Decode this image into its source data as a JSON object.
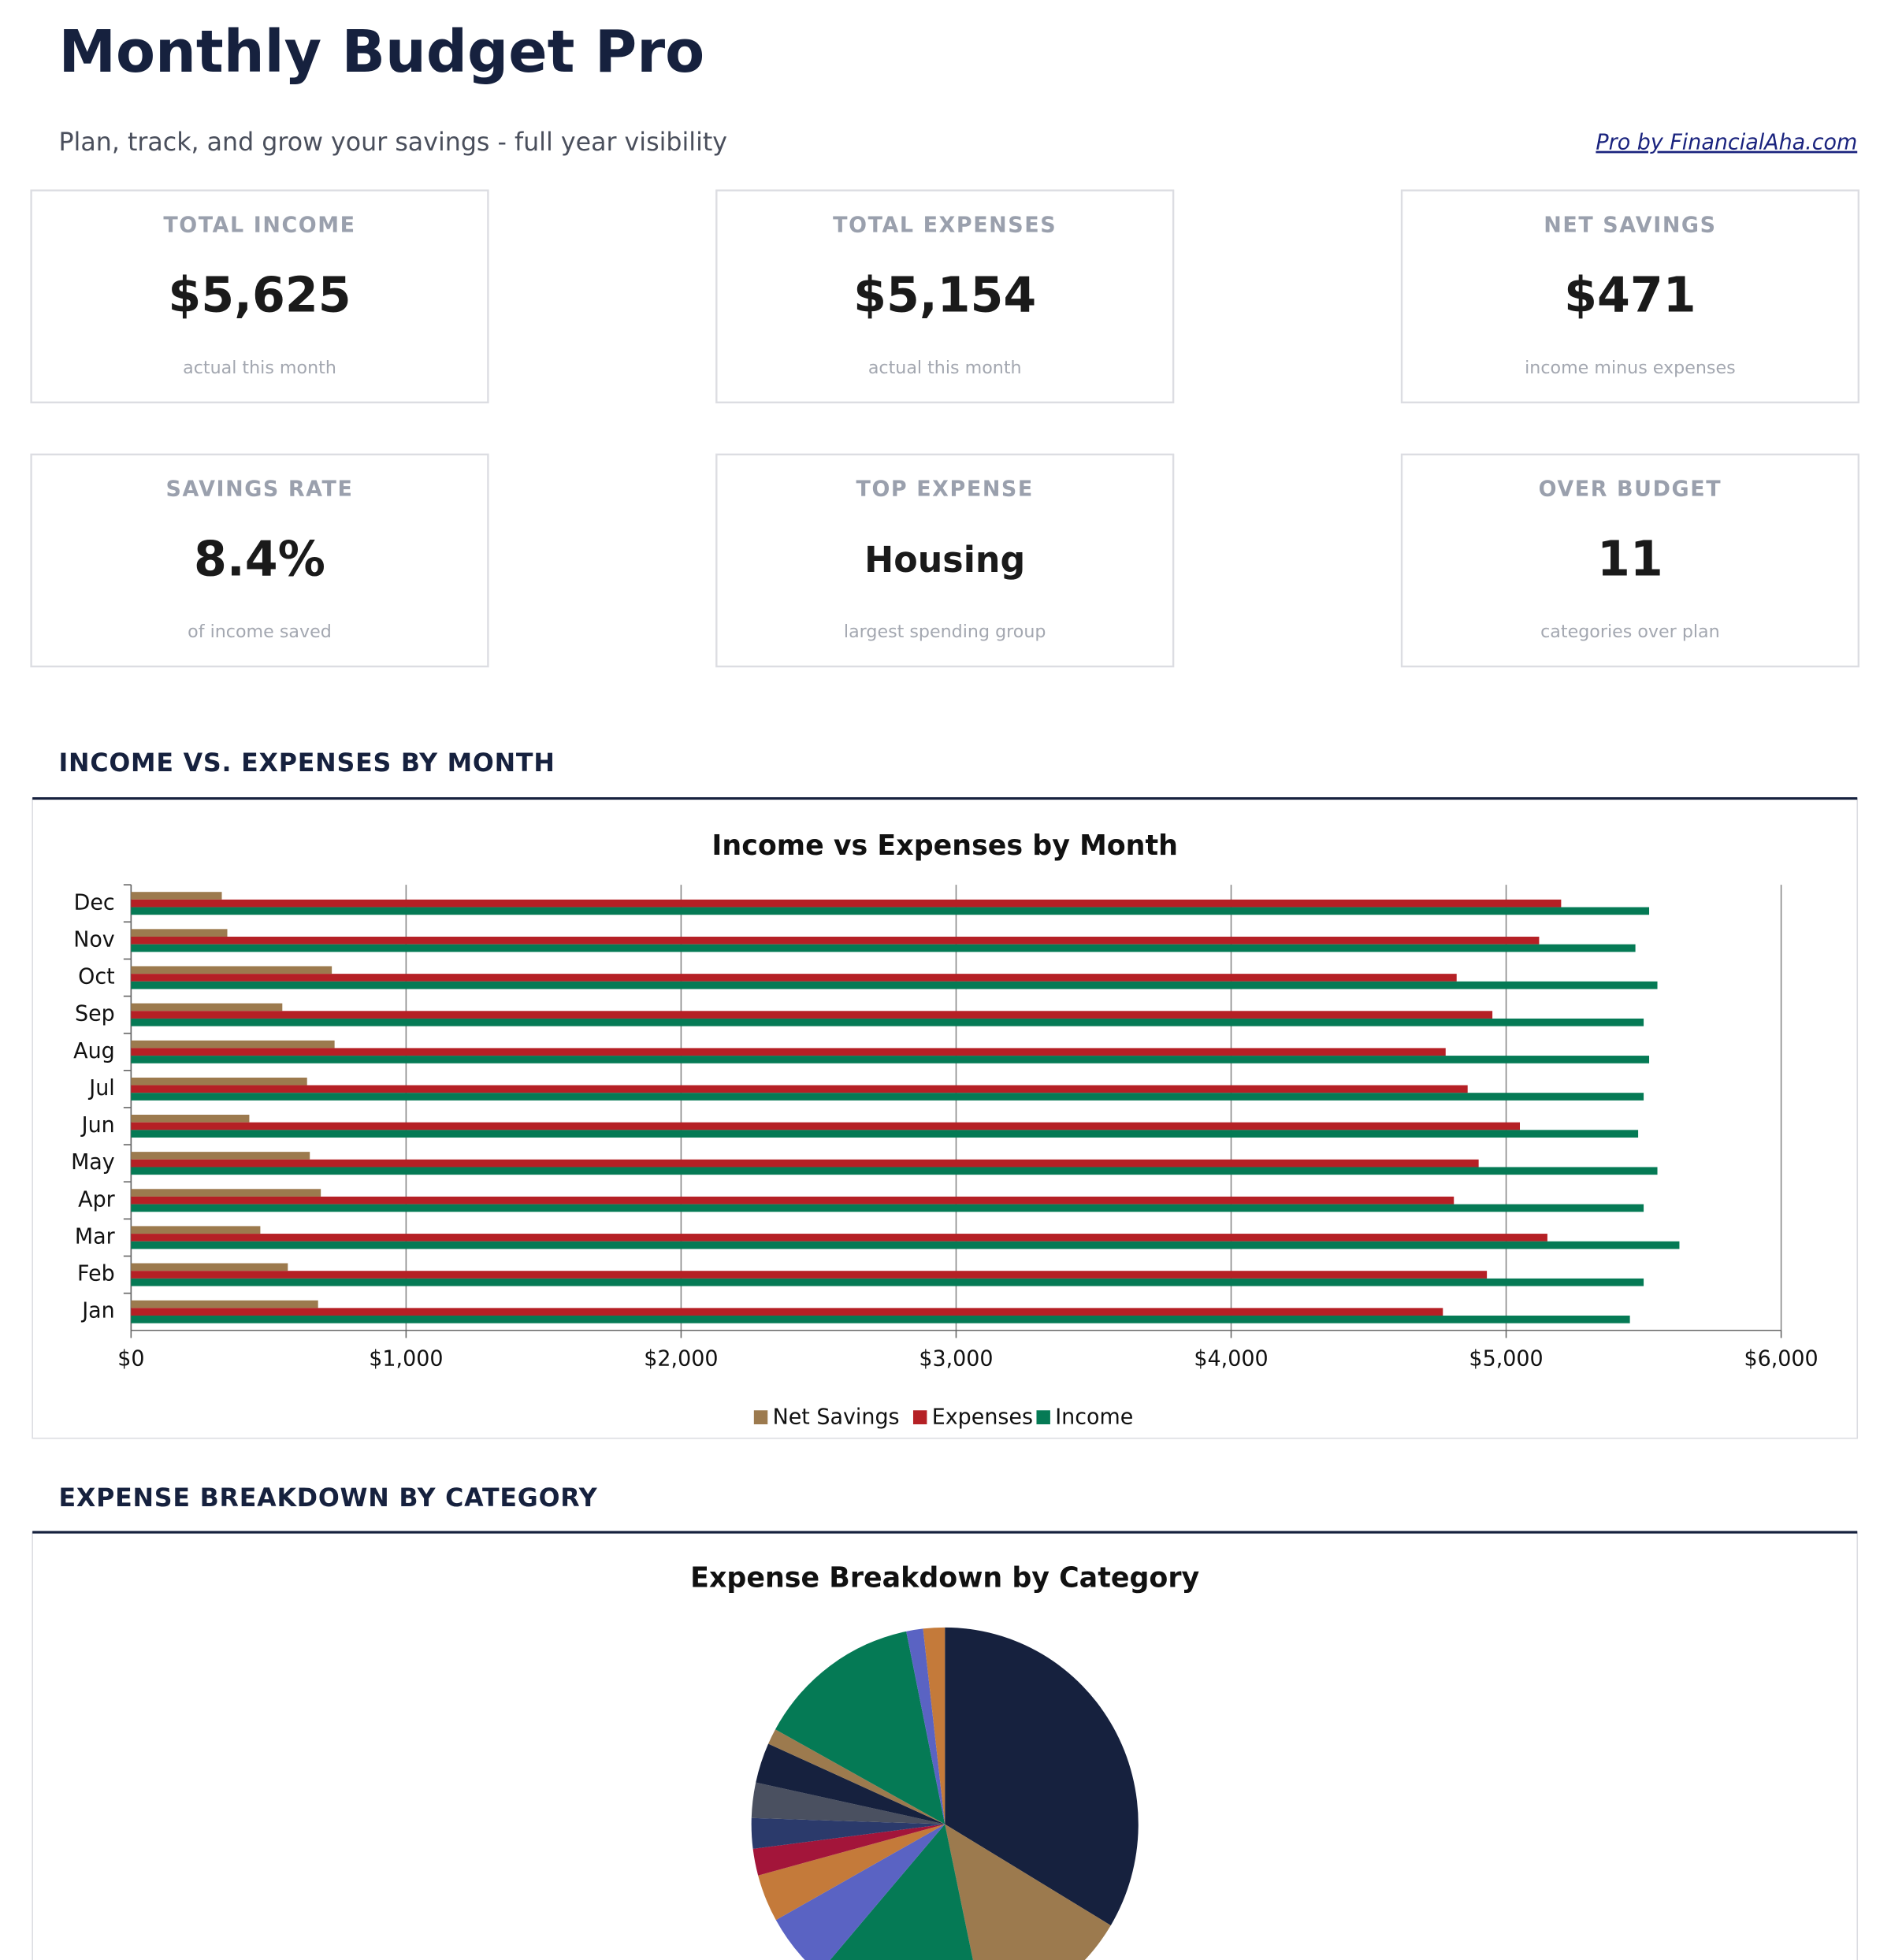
{
  "header": {
    "title": "Monthly Budget Pro",
    "subtitle": "Plan, track, and grow your savings - full year visibility",
    "link": "Pro by FinancialAha.com"
  },
  "kpis": [
    {
      "label": "TOTAL INCOME",
      "value": "$5,625",
      "note": "actual this month"
    },
    {
      "label": "TOTAL EXPENSES",
      "value": "$5,154",
      "note": "actual this month"
    },
    {
      "label": "NET SAVINGS",
      "value": "$471",
      "note": "income minus expenses"
    },
    {
      "label": "SAVINGS RATE",
      "value": "8.4%",
      "note": "of income saved"
    },
    {
      "label": "TOP EXPENSE",
      "value": "Housing",
      "note": "largest spending group"
    },
    {
      "label": "OVER BUDGET",
      "value": "11",
      "note": "categories over plan"
    }
  ],
  "sections": [
    "INCOME VS. EXPENSES BY MONTH",
    "EXPENSE BREAKDOWN BY CATEGORY"
  ],
  "chart_data": [
    {
      "type": "hbar",
      "title": "Income vs Expenses by Month",
      "categories": [
        "Jan",
        "Feb",
        "Mar",
        "Apr",
        "May",
        "Jun",
        "Jul",
        "Aug",
        "Sep",
        "Oct",
        "Nov",
        "Dec"
      ],
      "series": [
        {
          "name": "Net Savings",
          "color": "#9c7a4e",
          "values": [
            680,
            570,
            470,
            690,
            650,
            430,
            640,
            740,
            550,
            730,
            350,
            330
          ]
        },
        {
          "name": "Expenses",
          "color": "#b52025",
          "values": [
            4770,
            4930,
            5150,
            4810,
            4900,
            5050,
            4860,
            4780,
            4950,
            4820,
            5120,
            5200
          ]
        },
        {
          "name": "Income",
          "color": "#057a55",
          "values": [
            5450,
            5500,
            5630,
            5500,
            5550,
            5480,
            5500,
            5520,
            5500,
            5550,
            5470,
            5520
          ]
        }
      ],
      "xlim": [
        0,
        6000
      ],
      "xticks": [
        {
          "value": 0,
          "label": "$0"
        },
        {
          "value": 1000,
          "label": "$1,000"
        },
        {
          "value": 2000,
          "label": "$2,000"
        },
        {
          "value": 3000,
          "label": "$3,000"
        },
        {
          "value": 4000,
          "label": "$4,000"
        },
        {
          "value": 5000,
          "label": "$5,000"
        },
        {
          "value": 6000,
          "label": "$6,000"
        }
      ],
      "grid": true,
      "legend": "bottom"
    },
    {
      "type": "pie",
      "title": "Expense Breakdown by Category",
      "values": [
        33.6,
        13.1,
        14.6,
        5.6,
        3.9,
        2.2,
        2.5,
        2.9,
        3.3,
        1.3,
        13.8,
        1.4,
        1.8
      ],
      "colors": [
        "#16213e",
        "#9c7a4e",
        "#057a55",
        "#5a63c3",
        "#c47a3a",
        "#a3153a",
        "#2b3a6b",
        "#4a5060",
        "#16213e",
        "#9c7a4e",
        "#057a55",
        "#5a63c3",
        "#c47a3a"
      ]
    }
  ]
}
